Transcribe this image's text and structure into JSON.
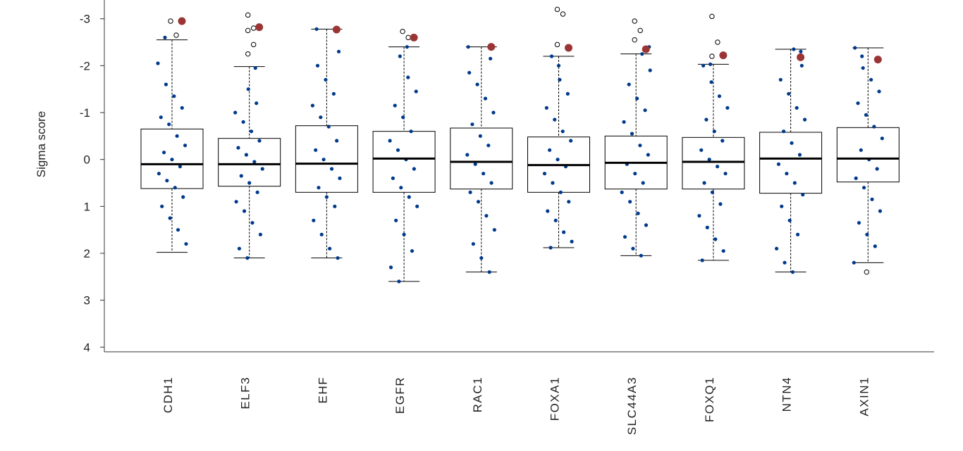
{
  "chart_data": {
    "type": "box",
    "ylabel": "Sigma score",
    "categories": [
      "CDH1",
      "ELF3",
      "EHF",
      "EGFR",
      "RAC1",
      "FOXA1",
      "SLC44A3",
      "FOXQ1",
      "NTN4",
      "AXIN1"
    ],
    "ylim": [
      -3.4,
      4.1
    ],
    "inverted": true,
    "yticks": [
      -3,
      -2,
      -1,
      0,
      1,
      2,
      3,
      4
    ],
    "point_color": "#003a8c",
    "highlight_color": "#9b3535",
    "box_color": "#000000",
    "boxes": [
      {
        "low": -2.55,
        "q1": -0.65,
        "median": 0.1,
        "q3": 0.62,
        "high": 1.98,
        "outliers": [
          -2.95,
          -2.65
        ],
        "highlight": -2.95,
        "points": [
          -2.05,
          -1.6,
          -1.35,
          -1.1,
          -0.9,
          -0.75,
          -0.5,
          -0.3,
          -0.15,
          0.0,
          0.15,
          0.3,
          0.45,
          0.6,
          0.8,
          1.0,
          1.25,
          1.5,
          1.8,
          -2.6
        ]
      },
      {
        "low": -1.98,
        "q1": -0.45,
        "median": 0.1,
        "q3": 0.57,
        "high": 2.1,
        "outliers": [
          -3.08,
          -2.8,
          -2.75,
          -2.45,
          -2.25
        ],
        "highlight": -2.82,
        "points": [
          -1.5,
          -1.2,
          -1.0,
          -0.8,
          -0.6,
          -0.4,
          -0.25,
          -0.1,
          0.05,
          0.2,
          0.35,
          0.5,
          0.7,
          0.9,
          1.1,
          1.35,
          1.6,
          1.9,
          2.1,
          -1.95
        ]
      },
      {
        "low": -2.78,
        "q1": -0.72,
        "median": 0.09,
        "q3": 0.7,
        "high": 2.1,
        "outliers": [],
        "highlight": -2.77,
        "points": [
          -2.3,
          -2.0,
          -1.7,
          -1.4,
          -1.15,
          -0.9,
          -0.7,
          -0.4,
          -0.2,
          0.0,
          0.2,
          0.4,
          0.6,
          0.8,
          1.0,
          1.3,
          1.6,
          1.9,
          2.1,
          -2.78
        ]
      },
      {
        "low": -2.4,
        "q1": -0.6,
        "median": -0.02,
        "q3": 0.7,
        "high": 2.6,
        "outliers": [
          -2.73,
          -2.6
        ],
        "highlight": -2.6,
        "points": [
          -2.2,
          -1.75,
          -1.45,
          -1.15,
          -0.9,
          -0.6,
          -0.4,
          -0.2,
          0.0,
          0.2,
          0.4,
          0.6,
          0.8,
          1.0,
          1.3,
          1.6,
          1.95,
          2.3,
          2.6,
          -2.4
        ]
      },
      {
        "low": -2.4,
        "q1": -0.67,
        "median": 0.05,
        "q3": 0.63,
        "high": 2.4,
        "outliers": [],
        "highlight": -2.4,
        "points": [
          -2.15,
          -1.85,
          -1.6,
          -1.3,
          -1.0,
          -0.75,
          -0.5,
          -0.3,
          -0.1,
          0.1,
          0.3,
          0.5,
          0.7,
          0.9,
          1.2,
          1.5,
          1.8,
          2.1,
          2.4,
          -2.4
        ]
      },
      {
        "low": -2.2,
        "q1": -0.48,
        "median": 0.12,
        "q3": 0.7,
        "high": 1.88,
        "outliers": [
          -3.2,
          -3.1,
          -2.45
        ],
        "highlight": -2.38,
        "points": [
          -2.2,
          -1.7,
          -1.4,
          -1.1,
          -0.85,
          -0.6,
          -0.4,
          -0.2,
          0.0,
          0.15,
          0.3,
          0.5,
          0.7,
          0.9,
          1.1,
          1.3,
          1.55,
          1.75,
          1.88,
          -2.0
        ]
      },
      {
        "low": -2.25,
        "q1": -0.5,
        "median": 0.07,
        "q3": 0.63,
        "high": 2.05,
        "outliers": [
          -2.95,
          -2.75,
          -2.55
        ],
        "highlight": -2.35,
        "points": [
          -2.25,
          -1.9,
          -1.6,
          -1.3,
          -1.05,
          -0.8,
          -0.55,
          -0.3,
          -0.1,
          0.1,
          0.3,
          0.5,
          0.7,
          0.9,
          1.15,
          1.4,
          1.65,
          1.9,
          2.05,
          -2.4
        ]
      },
      {
        "low": -2.03,
        "q1": -0.47,
        "median": 0.05,
        "q3": 0.63,
        "high": 2.15,
        "outliers": [
          -3.05,
          -2.5,
          -2.2
        ],
        "highlight": -2.22,
        "points": [
          -2.0,
          -1.65,
          -1.35,
          -1.1,
          -0.85,
          -0.6,
          -0.4,
          -0.2,
          0.0,
          0.15,
          0.3,
          0.5,
          0.7,
          0.95,
          1.2,
          1.45,
          1.7,
          1.95,
          2.15,
          -2.03
        ]
      },
      {
        "low": -2.35,
        "q1": -0.58,
        "median": -0.02,
        "q3": 0.72,
        "high": 2.4,
        "outliers": [],
        "highlight": -2.18,
        "points": [
          -2.35,
          -2.0,
          -1.7,
          -1.4,
          -1.1,
          -0.85,
          -0.6,
          -0.35,
          -0.1,
          0.1,
          0.3,
          0.5,
          0.75,
          1.0,
          1.3,
          1.6,
          1.9,
          2.2,
          2.4,
          -2.3
        ]
      },
      {
        "low": -2.38,
        "q1": -0.68,
        "median": -0.02,
        "q3": 0.48,
        "high": 2.2,
        "outliers": [
          2.4
        ],
        "highlight": -2.13,
        "points": [
          -2.38,
          -1.95,
          -1.7,
          -1.45,
          -1.2,
          -0.95,
          -0.7,
          -0.45,
          -0.2,
          0.0,
          0.2,
          0.4,
          0.6,
          0.85,
          1.1,
          1.35,
          1.6,
          1.85,
          2.2,
          -2.2
        ]
      }
    ]
  }
}
